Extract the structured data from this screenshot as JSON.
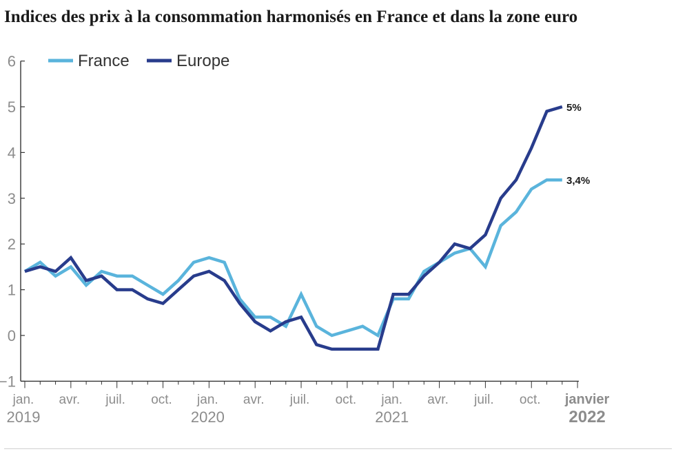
{
  "title": "Indices des prix à la consommation harmonisés en France et dans la zone euro",
  "chart_data": {
    "type": "line",
    "title": "Indices des prix à la consommation harmonisés en France et dans la zone euro",
    "xlabel": "",
    "ylabel": "",
    "ylim": [
      -1,
      6
    ],
    "yticks": [
      -1,
      0,
      1,
      2,
      3,
      4,
      5,
      6
    ],
    "ytick_labels": [
      "−1",
      "0",
      "1",
      "2",
      "3",
      "4",
      "5",
      "6"
    ],
    "x": [
      "2019-01",
      "2019-02",
      "2019-03",
      "2019-04",
      "2019-05",
      "2019-06",
      "2019-07",
      "2019-08",
      "2019-09",
      "2019-10",
      "2019-11",
      "2019-12",
      "2020-01",
      "2020-02",
      "2020-03",
      "2020-04",
      "2020-05",
      "2020-06",
      "2020-07",
      "2020-08",
      "2020-09",
      "2020-10",
      "2020-11",
      "2020-12",
      "2021-01",
      "2021-02",
      "2021-03",
      "2021-04",
      "2021-05",
      "2021-06",
      "2021-07",
      "2021-08",
      "2021-09",
      "2021-10",
      "2021-11",
      "2021-12",
      "2022-01"
    ],
    "xtick_labels": [
      {
        "x": "2019-01",
        "month": "jan.",
        "year": "2019"
      },
      {
        "x": "2019-04",
        "month": "avr.",
        "year": ""
      },
      {
        "x": "2019-07",
        "month": "juil.",
        "year": ""
      },
      {
        "x": "2019-10",
        "month": "oct.",
        "year": ""
      },
      {
        "x": "2020-01",
        "month": "jan.",
        "year": "2020"
      },
      {
        "x": "2020-04",
        "month": "avr.",
        "year": ""
      },
      {
        "x": "2020-07",
        "month": "juil.",
        "year": ""
      },
      {
        "x": "2020-10",
        "month": "oct.",
        "year": ""
      },
      {
        "x": "2021-01",
        "month": "jan.",
        "year": "2021"
      },
      {
        "x": "2021-04",
        "month": "avr.",
        "year": ""
      },
      {
        "x": "2021-07",
        "month": "juil.",
        "year": ""
      },
      {
        "x": "2021-10",
        "month": "oct.",
        "year": ""
      },
      {
        "x": "2022-01",
        "month": "janvier",
        "year": "2022",
        "bold": true
      }
    ],
    "series": [
      {
        "name": "France",
        "color": "#5ab4dc",
        "values": [
          1.4,
          1.6,
          1.3,
          1.5,
          1.1,
          1.4,
          1.3,
          1.3,
          1.1,
          0.9,
          1.2,
          1.6,
          1.7,
          1.6,
          0.8,
          0.4,
          0.4,
          0.2,
          0.9,
          0.2,
          0.0,
          0.1,
          0.2,
          0.0,
          0.8,
          0.8,
          1.4,
          1.6,
          1.8,
          1.9,
          1.5,
          2.4,
          2.7,
          3.2,
          3.4,
          3.4,
          null
        ],
        "end_label": "3,4%"
      },
      {
        "name": "Europe",
        "color": "#283c8c",
        "values": [
          1.4,
          1.5,
          1.4,
          1.7,
          1.2,
          1.3,
          1.0,
          1.0,
          0.8,
          0.7,
          1.0,
          1.3,
          1.4,
          1.2,
          0.7,
          0.3,
          0.1,
          0.3,
          0.4,
          -0.2,
          -0.3,
          -0.3,
          -0.3,
          -0.3,
          0.9,
          0.9,
          1.3,
          1.6,
          2.0,
          1.9,
          2.2,
          3.0,
          3.4,
          4.1,
          4.9,
          5.0,
          null
        ],
        "end_label": "5%"
      }
    ],
    "legend": "top-left",
    "grid": false
  }
}
